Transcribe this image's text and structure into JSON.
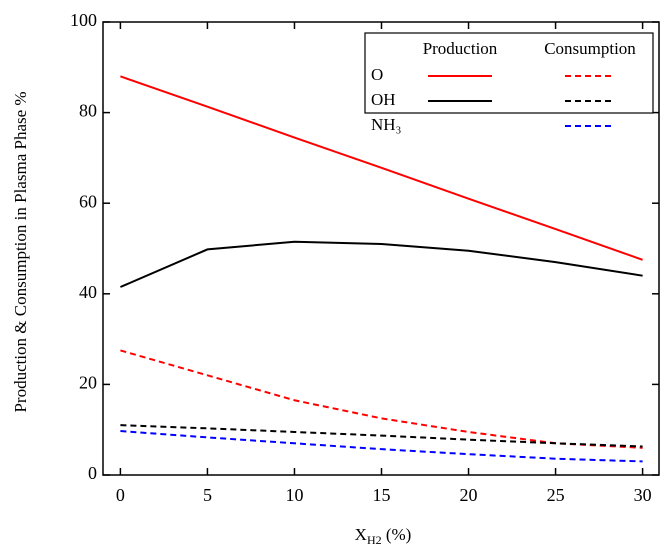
{
  "chart_data": {
    "type": "line",
    "x_label": [
      "X",
      "H2",
      " (%)"
    ],
    "y_label": "Production & Consumption in Plasma Phase %",
    "x": [
      0,
      5,
      10,
      15,
      20,
      25,
      30
    ],
    "xlim": [
      -1,
      31
    ],
    "xticks": [
      0,
      5,
      10,
      15,
      20,
      25,
      30
    ],
    "ylim": [
      0,
      100
    ],
    "yticks": [
      0,
      20,
      40,
      60,
      80,
      100
    ],
    "legend_columns": [
      "Production",
      "Consumption"
    ],
    "species": [
      {
        "name": "O",
        "color": "#ff0000",
        "production": [
          88,
          81.3,
          74.5,
          67.8,
          61,
          54.3,
          47.5
        ],
        "consumption": [
          27.5,
          22,
          16.5,
          12.5,
          9.5,
          7,
          6
        ]
      },
      {
        "name": "OH",
        "color": "#000000",
        "production": [
          41.5,
          49.8,
          51.5,
          51,
          49.5,
          47,
          44
        ],
        "consumption": [
          11,
          10.3,
          9.5,
          8.7,
          7.8,
          7,
          6.3
        ]
      },
      {
        "name": "NH₃",
        "color": "#0000ff",
        "consumption": [
          9.7,
          8.3,
          7,
          5.7,
          4.6,
          3.6,
          3
        ]
      }
    ]
  }
}
